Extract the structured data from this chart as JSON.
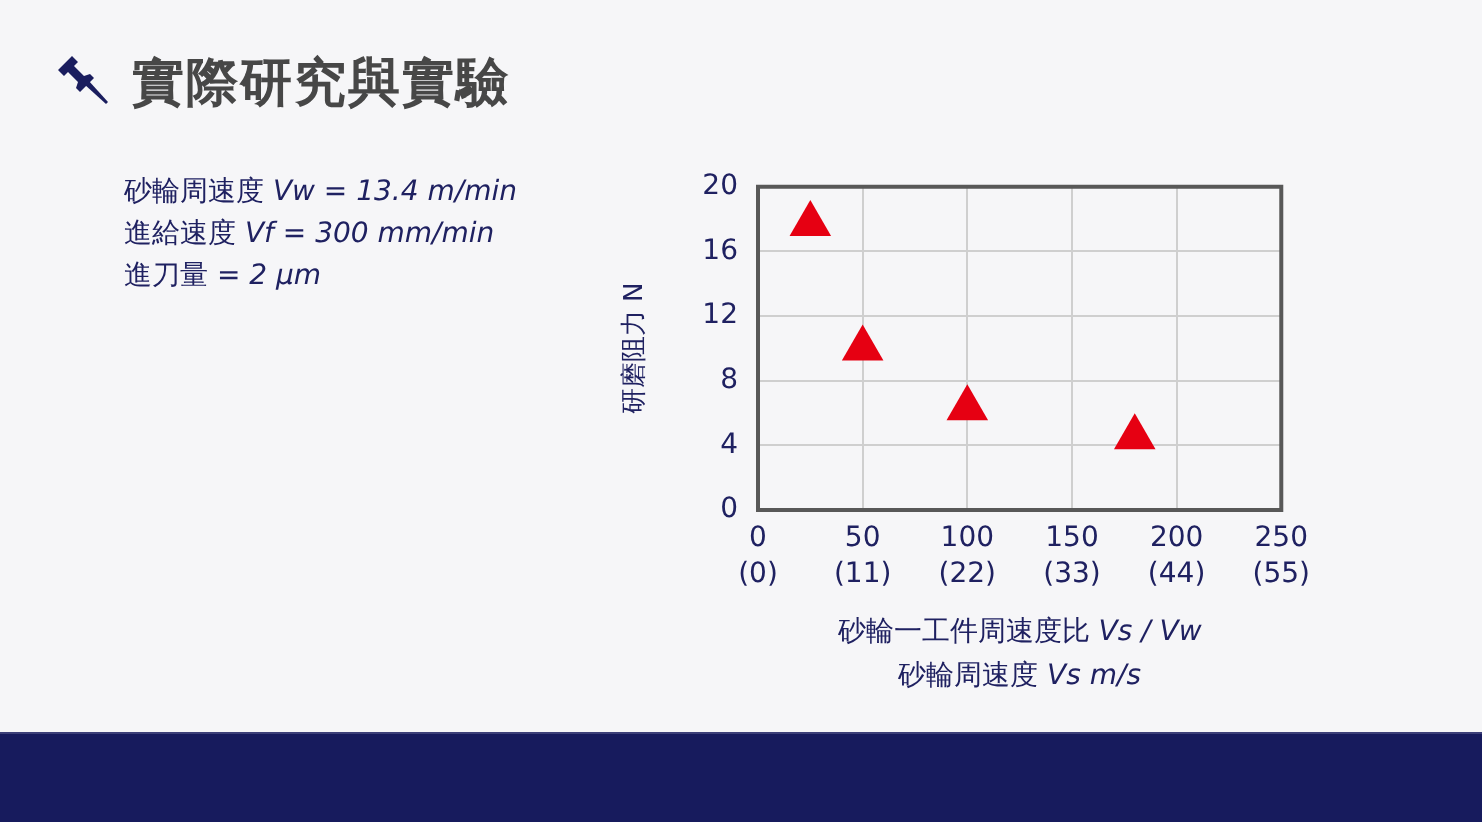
{
  "chart_data": {
    "type": "scatter",
    "title": "實際研究與實驗",
    "annotations": [
      "砂輪周速度 Vw = 13.4 m/min",
      "進給速度 Vf = 300 mm/min",
      "進刀量 = 2 μm"
    ],
    "xlabel": "砂輪一工件周速度比 Vs / Vw",
    "x2label": "砂輪周速度 Vs m/s",
    "ylabel": "研磨阻力 N",
    "x": [
      25,
      50,
      100,
      180
    ],
    "values": [
      17.7,
      10,
      6.3,
      4.5
    ],
    "color": "#e60012",
    "marker": "triangle",
    "xlim": [
      0,
      250
    ],
    "xticks": [
      0,
      50,
      100,
      150,
      200,
      250
    ],
    "x2lim": [
      0,
      55
    ],
    "x2ticks": [
      {
        "value": 0,
        "label": "(0)"
      },
      {
        "value": 11,
        "label": "(11)"
      },
      {
        "value": 22,
        "label": "(22)"
      },
      {
        "value": 33,
        "label": "(33)"
      },
      {
        "value": 44,
        "label": "(44)"
      },
      {
        "value": 55,
        "label": "(55)"
      }
    ],
    "ylim": [
      0,
      20
    ],
    "yticks": [
      0,
      4,
      8,
      12,
      16,
      20
    ],
    "grid": true,
    "legend": false
  }
}
